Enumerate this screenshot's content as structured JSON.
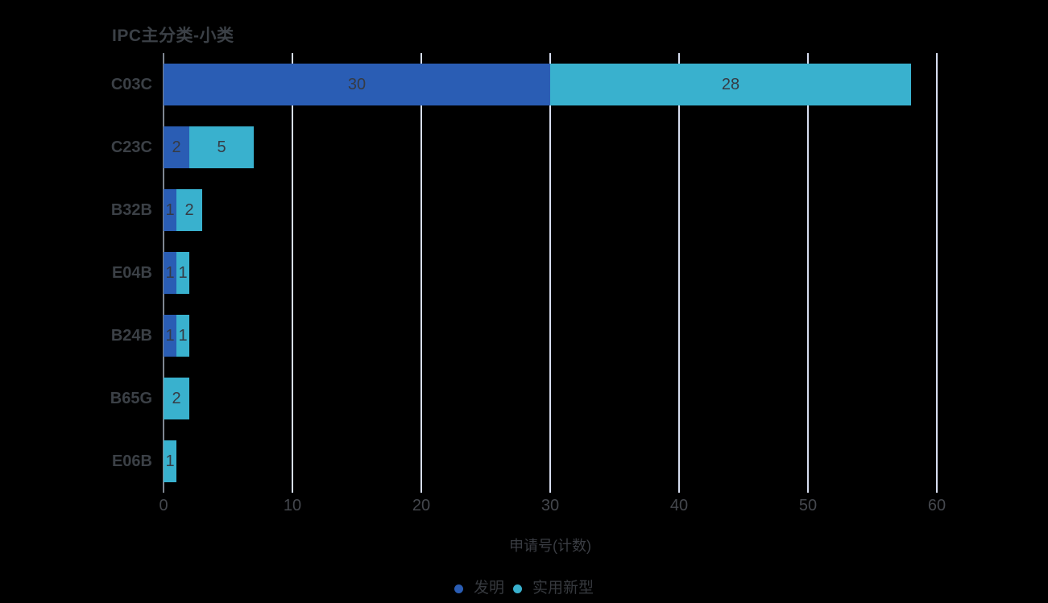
{
  "chart_data": {
    "type": "bar",
    "orientation": "horizontal",
    "stacked": true,
    "title": "IPC主分类-小类",
    "xlabel": "申请号(计数)",
    "categories": [
      "C03C",
      "C23C",
      "B32B",
      "E04B",
      "B24B",
      "B65G",
      "E06B"
    ],
    "series": [
      {
        "name": "发明",
        "key": "invention",
        "color": "#2a5db4",
        "values": [
          30,
          2,
          1,
          1,
          1,
          0,
          0
        ]
      },
      {
        "name": "实用新型",
        "key": "utility-model",
        "color": "#39b1ce",
        "values": [
          28,
          5,
          2,
          1,
          1,
          2,
          1
        ]
      }
    ],
    "xticks": [
      0,
      10,
      20,
      30,
      40,
      50,
      60
    ],
    "xlim": [
      0,
      60
    ],
    "grid": true,
    "legend_position": "bottom",
    "value_labels": "shown inside segments, zero values hidden"
  },
  "colors": {
    "grid_line": "#d7def0",
    "axis_line": "#7e8691",
    "title_text": "#3b4046",
    "tick_text": "#44474d",
    "value_text": "#363b44",
    "background": "#000000"
  }
}
